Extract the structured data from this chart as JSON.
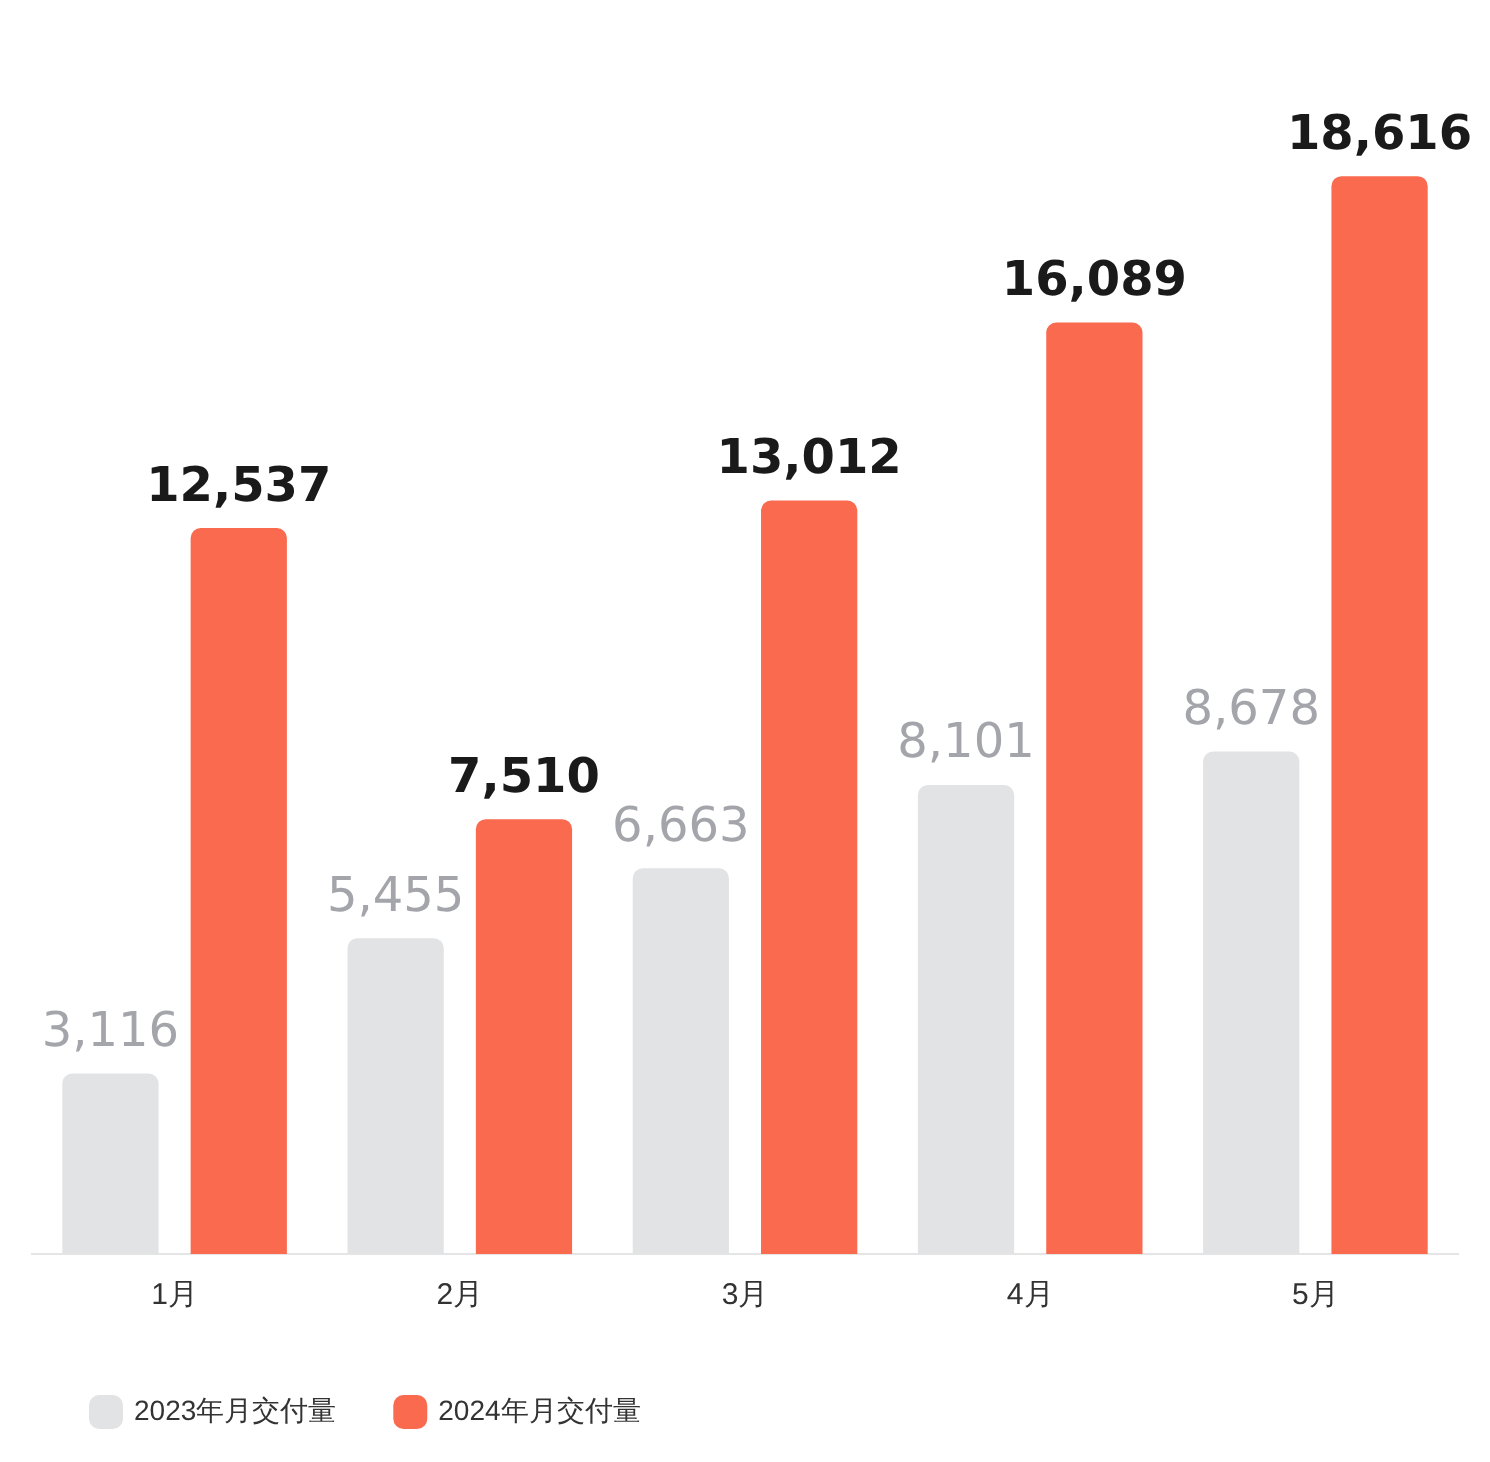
{
  "chart_data": {
    "type": "bar",
    "categories": [
      "1月",
      "2月",
      "3月",
      "4月",
      "5月"
    ],
    "series": [
      {
        "name": "2023年月交付量",
        "color": "#e2e3e5",
        "values": [
          3116,
          5455,
          6663,
          8101,
          8678
        ],
        "value_labels": [
          "3,116",
          "5,455",
          "6,663",
          "8,101",
          "8,678"
        ]
      },
      {
        "name": "2024年月交付量",
        "color": "#fa6a4e",
        "values": [
          12537,
          7510,
          13012,
          16089,
          18616
        ],
        "value_labels": [
          "12,537",
          "7,510",
          "13,012",
          "16,089",
          "18,616"
        ]
      }
    ],
    "legend": "bottom left",
    "grid": false
  }
}
